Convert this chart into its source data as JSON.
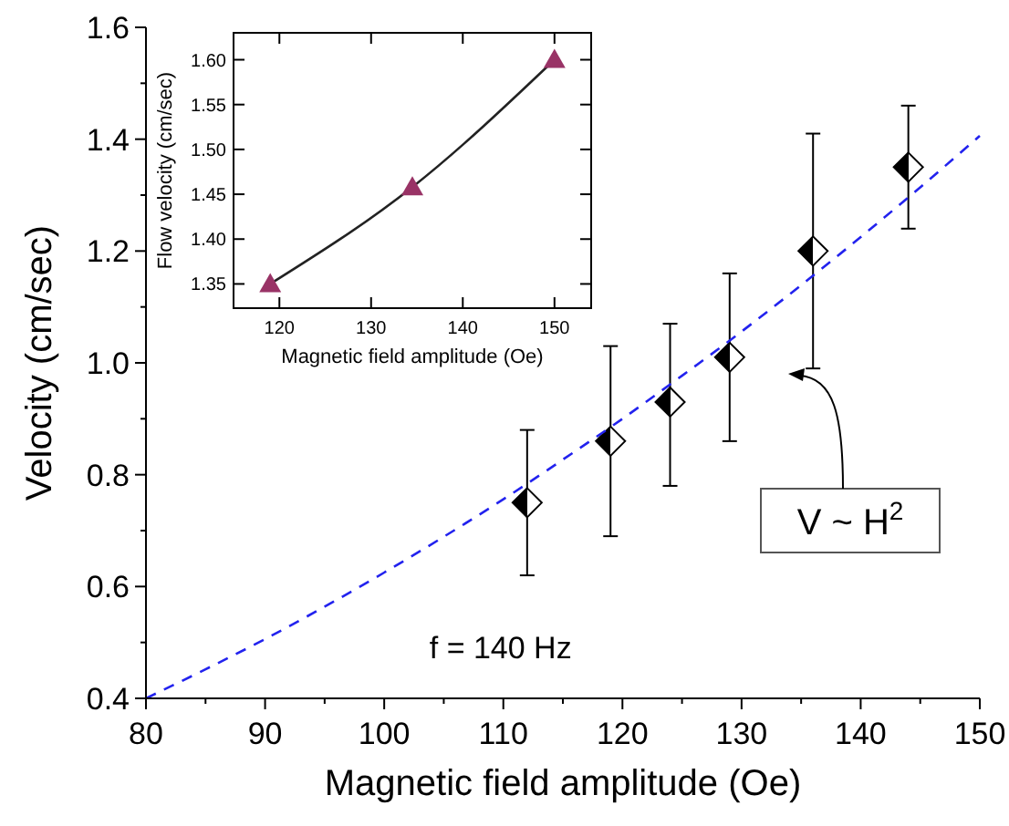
{
  "chart_data": [
    {
      "type": "scatter",
      "xlabel": "Magnetic field amplitude (Oe)",
      "ylabel": "Velocity (cm/sec)",
      "xlim": [
        80,
        150
      ],
      "ylim": [
        0.4,
        1.6
      ],
      "xticks": [
        80,
        {
          "value": 85,
          "label": null
        },
        90,
        {
          "value": 95,
          "label": null
        },
        100,
        {
          "value": 105,
          "label": null
        },
        110,
        {
          "value": 115,
          "label": null
        },
        120,
        {
          "value": 125,
          "label": null
        },
        130,
        {
          "value": 135,
          "label": null
        },
        140,
        {
          "value": 145,
          "label": null
        },
        150
      ],
      "yticks": [
        0.4,
        {
          "value": 0.5,
          "label": null
        },
        0.6,
        {
          "value": 0.7,
          "label": null
        },
        0.8,
        {
          "value": 0.9,
          "label": null
        },
        {
          "value": 1.0,
          "label": "1.0"
        },
        {
          "value": 1.1,
          "label": null
        },
        1.2,
        {
          "value": 1.3,
          "label": null
        },
        1.4,
        {
          "value": 1.5,
          "label": null
        },
        1.6
      ],
      "series": [
        {
          "color": "#000000",
          "marker": "diamond",
          "x": [
            112,
            119,
            124,
            129,
            136,
            144
          ],
          "values": [
            0.75,
            0.86,
            0.93,
            1.01,
            1.2,
            1.35
          ],
          "errors": [
            [
              0.62,
              0.88
            ],
            [
              0.69,
              1.03
            ],
            [
              0.78,
              1.07
            ],
            [
              0.86,
              1.16
            ],
            [
              0.99,
              1.41
            ],
            [
              1.24,
              1.46
            ]
          ]
        },
        {
          "type": "line",
          "color": "#2222ee",
          "line_style": "dashed",
          "x": [
            80,
            85,
            90,
            95,
            100,
            105,
            110,
            115,
            120,
            125,
            130,
            135,
            140,
            145,
            150
          ],
          "values": [
            0.4,
            0.452,
            0.506,
            0.564,
            0.625,
            0.689,
            0.756,
            0.827,
            0.9,
            0.977,
            1.056,
            1.139,
            1.225,
            1.314,
            1.406
          ]
        }
      ],
      "annotations": [
        "V ~ H$^{2}$",
        "f = 140 Hz"
      ]
    },
    {
      "type": "scatter",
      "xlabel": "Magnetic field amplitude (Oe)",
      "ylabel": "Flow velocity (cm/sec)",
      "xlim": [
        115,
        154
      ],
      "ylim": [
        1.323,
        1.63
      ],
      "xticks": [
        120,
        130,
        140,
        150
      ],
      "yticks": [
        {
          "value": 1.35,
          "label": "1.35"
        },
        {
          "value": 1.4,
          "label": "1.40"
        },
        {
          "value": 1.45,
          "label": "1.45"
        },
        {
          "value": 1.5,
          "label": "1.50"
        },
        {
          "value": 1.55,
          "label": "1.55"
        },
        {
          "value": 1.6,
          "label": "1.60"
        }
      ],
      "series": [
        {
          "type": "line",
          "color": "#222222",
          "line_style": "solid",
          "x": [
            119,
            134.5,
            150
          ],
          "values": [
            1.35,
            1.458,
            1.6
          ]
        },
        {
          "color": "#993366",
          "marker": "triangle",
          "x": [
            119,
            134.5,
            150
          ],
          "values": [
            1.35,
            1.458,
            1.6
          ]
        }
      ]
    }
  ]
}
